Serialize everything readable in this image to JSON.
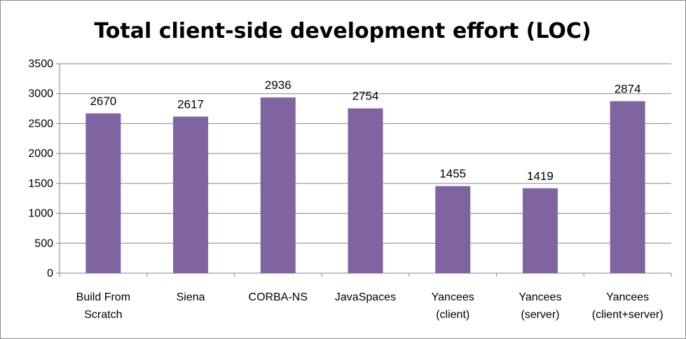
{
  "chart_data": {
    "type": "bar",
    "title": "Total client-side development effort (LOC)",
    "xlabel": "",
    "ylabel": "",
    "categories": [
      [
        "Build From",
        "Scratch"
      ],
      [
        "Siena"
      ],
      [
        "CORBA-NS"
      ],
      [
        "JavaSpaces"
      ],
      [
        "Yancees",
        "(client)"
      ],
      [
        "Yancees",
        "(server)"
      ],
      [
        "Yancees",
        "(client+server)"
      ]
    ],
    "values": [
      2670,
      2617,
      2936,
      2754,
      1455,
      1419,
      2874
    ],
    "data_labels": [
      "2670",
      "2617",
      "2936",
      "2754",
      "1455",
      "1419",
      "2874"
    ],
    "ylim": [
      0,
      3500
    ],
    "yticks": [
      0,
      500,
      1000,
      1500,
      2000,
      2500,
      3000,
      3500
    ],
    "ytick_labels": [
      "0",
      "500",
      "1000",
      "1500",
      "2000",
      "2500",
      "3000",
      "3500"
    ],
    "grid": true,
    "legend": "none",
    "bar_color": "#8064a2",
    "grid_color": "#868686"
  }
}
